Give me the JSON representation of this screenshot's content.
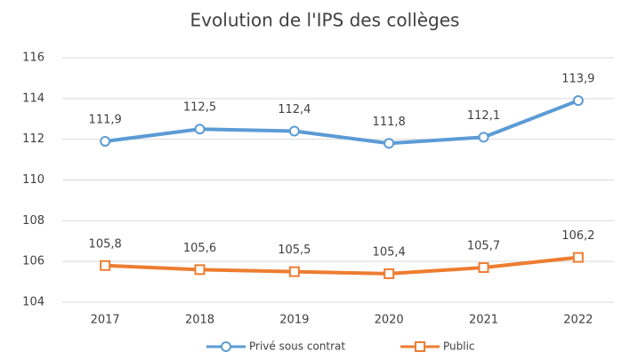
{
  "chart_data": {
    "type": "line",
    "title": "Evolution de l'IPS des collèges",
    "categories": [
      "2017",
      "2018",
      "2019",
      "2020",
      "2021",
      "2022"
    ],
    "series": [
      {
        "name": "Privé sous contrat",
        "color": "#5b9bd5",
        "marker": "circle",
        "values": [
          111.9,
          112.5,
          112.4,
          111.8,
          112.1,
          113.9
        ],
        "value_labels": [
          "111,9",
          "112,5",
          "112,4",
          "111,8",
          "112,1",
          "113,9"
        ]
      },
      {
        "name": "Public",
        "color": "#ed7d31",
        "marker": "square",
        "values": [
          105.8,
          105.6,
          105.5,
          105.4,
          105.7,
          106.2
        ],
        "value_labels": [
          "105,8",
          "105,6",
          "105,5",
          "105,4",
          "105,7",
          "106,2"
        ]
      }
    ],
    "ylim": [
      104,
      116
    ],
    "yticks": [
      104,
      106,
      108,
      110,
      112,
      114,
      116
    ],
    "grid": true,
    "legend": "bottom"
  }
}
